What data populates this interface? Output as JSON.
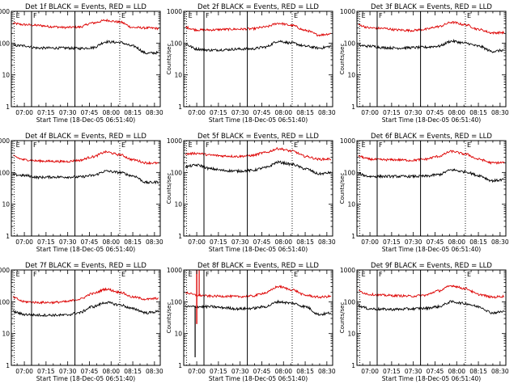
{
  "chart_data": {
    "type": "line",
    "shared": {
      "xlabel": "Start Time (18-Dec-05 06:51:40)",
      "ylabel": "Counts/sec",
      "x_tick_labels": [
        "07:00",
        "07:15",
        "07:30",
        "07:45",
        "08:00",
        "08:15",
        "08:30"
      ],
      "x_tick_minutes": [
        0,
        15,
        30,
        45,
        60,
        75,
        90
      ],
      "xlim_minutes": [
        -9,
        94
      ],
      "y_scale": "log",
      "ylim": [
        1,
        1000
      ],
      "y_tick_labels": [
        "1",
        "10",
        "100",
        "1000"
      ],
      "y_tick_values": [
        1,
        10,
        100,
        1000
      ],
      "series": [
        {
          "name": "Events",
          "color": "#000000"
        },
        {
          "name": "LLD",
          "color": "#dd0000"
        }
      ],
      "markers": [
        {
          "label": "E",
          "minute": -7,
          "style": "dotted"
        },
        {
          "label": "F",
          "minute": 5,
          "style": "solid"
        },
        {
          "label": "",
          "minute": 35,
          "style": "solid"
        },
        {
          "label": "E",
          "minute": 66,
          "style": "dotted"
        }
      ]
    },
    "panels": [
      {
        "title": "Det 1f BLACK = Events, RED = LLD",
        "events_level": [
          85,
          82,
          70,
          70,
          70,
          68,
          72,
          110,
          105,
          80,
          48,
          50
        ],
        "lld_level": [
          420,
          380,
          360,
          330,
          310,
          320,
          430,
          520,
          460,
          310,
          300,
          290
        ],
        "spike_minute": null
      },
      {
        "title": "Det 2f BLACK = Events, RED = LLD",
        "events_level": [
          95,
          65,
          60,
          62,
          65,
          66,
          75,
          115,
          100,
          80,
          70,
          80
        ],
        "lld_level": [
          320,
          260,
          260,
          270,
          275,
          280,
          320,
          420,
          360,
          250,
          180,
          200
        ],
        "spike_minute": null
      },
      {
        "title": "Det 3f BLACK = Events, RED = LLD",
        "events_level": [
          85,
          80,
          72,
          70,
          72,
          74,
          80,
          115,
          100,
          80,
          55,
          60
        ],
        "lld_level": [
          380,
          300,
          290,
          260,
          250,
          270,
          330,
          450,
          380,
          270,
          210,
          215
        ],
        "spike_minute": null
      },
      {
        "title": "Det 4f BLACK = Events, RED = LLD",
        "events_level": [
          85,
          80,
          70,
          72,
          72,
          72,
          80,
          110,
          100,
          78,
          48,
          50
        ],
        "lld_level": [
          330,
          250,
          230,
          225,
          220,
          240,
          310,
          440,
          360,
          250,
          200,
          195
        ],
        "spike_minute": null
      },
      {
        "title": "Det 5f BLACK = Events, RED = LLD",
        "events_level": [
          150,
          170,
          130,
          115,
          110,
          115,
          140,
          210,
          180,
          130,
          90,
          100
        ],
        "lld_level": [
          380,
          400,
          350,
          330,
          320,
          340,
          420,
          560,
          470,
          320,
          260,
          265
        ],
        "spike_minute": null
      },
      {
        "title": "Det 6f BLACK = Events, RED = LLD",
        "events_level": [
          90,
          75,
          75,
          75,
          75,
          76,
          85,
          120,
          105,
          80,
          55,
          60
        ],
        "lld_level": [
          330,
          260,
          250,
          250,
          240,
          260,
          320,
          460,
          380,
          260,
          200,
          205
        ],
        "spike_minute": null
      },
      {
        "title": "Det 7f BLACK = Events, RED = LLD",
        "events_level": [
          50,
          40,
          38,
          38,
          38,
          45,
          70,
          95,
          80,
          60,
          45,
          50
        ],
        "lld_level": [
          140,
          100,
          95,
          95,
          100,
          120,
          180,
          250,
          200,
          140,
          120,
          130
        ],
        "spike_minute": null
      },
      {
        "title": "Det 8f BLACK = Events, RED = LLD",
        "events_level": [
          70,
          70,
          70,
          65,
          60,
          62,
          70,
          100,
          90,
          70,
          40,
          45
        ],
        "lld_level": [
          200,
          160,
          150,
          150,
          145,
          150,
          190,
          300,
          240,
          160,
          140,
          150
        ],
        "spike_minute": 0
      },
      {
        "title": "Det 9f BLACK = Events, RED = LLD",
        "events_level": [
          75,
          60,
          58,
          58,
          60,
          62,
          70,
          100,
          88,
          70,
          45,
          50
        ],
        "lld_level": [
          220,
          170,
          160,
          155,
          150,
          160,
          220,
          320,
          260,
          170,
          140,
          150
        ],
        "spike_minute": null
      }
    ]
  }
}
